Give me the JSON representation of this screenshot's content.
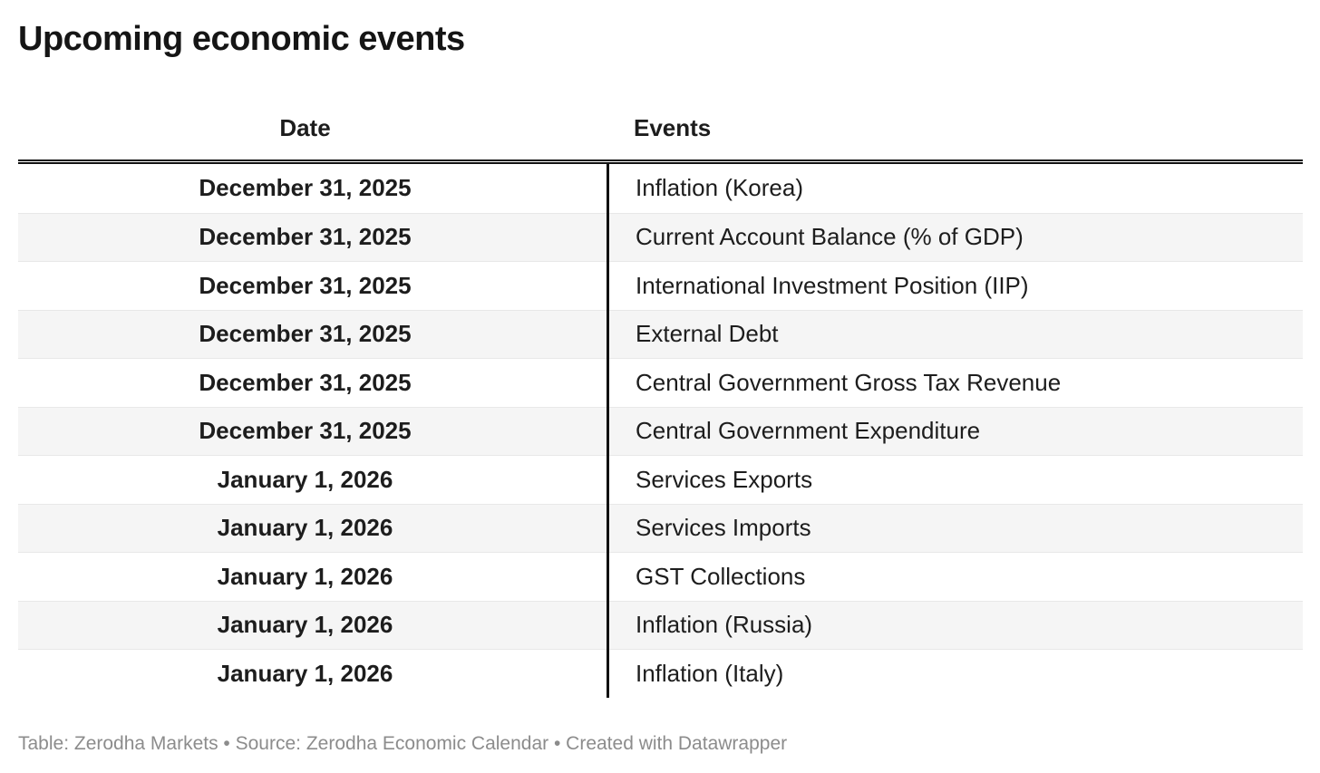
{
  "title": "Upcoming economic events",
  "chart_data": {
    "type": "table",
    "title": "Upcoming economic events",
    "columns": [
      {
        "label": "Date",
        "align": "center",
        "bold": true
      },
      {
        "label": "Events",
        "align": "left",
        "bold": false
      }
    ],
    "rows": [
      [
        "December 31, 2025",
        "Inflation (Korea)"
      ],
      [
        "December 31, 2025",
        "Current Account Balance (% of GDP)"
      ],
      [
        "December 31, 2025",
        "International Investment Position (IIP)"
      ],
      [
        "December 31, 2025",
        "External Debt"
      ],
      [
        "December 31, 2025",
        "Central Government Gross Tax Revenue"
      ],
      [
        "December 31, 2025",
        "Central Government Expenditure"
      ],
      [
        "January 1, 2026",
        "Services Exports"
      ],
      [
        "January 1, 2026",
        "Services Imports"
      ],
      [
        "January 1, 2026",
        "GST Collections"
      ],
      [
        "January 1, 2026",
        "Inflation (Russia)"
      ],
      [
        "January 1, 2026",
        "Inflation (Italy)"
      ]
    ],
    "layout": {
      "zebra_striping": true,
      "header_rule": "double-black-line",
      "column_divider": "thick-black-vertical",
      "legend": "none",
      "grid": "row-separators-only"
    }
  },
  "footer": {
    "text": "Table: Zerodha Markets • Source: Zerodha Economic Calendar • Created with Datawrapper"
  },
  "colors": {
    "text": "#1d1d1d",
    "title_text": "#151515",
    "alt_row_background": "#f5f5f5",
    "row_border": "#e8e8e8",
    "rule_black": "#111111",
    "footer_text": "#8c8c8c",
    "page_background": "#ffffff"
  }
}
